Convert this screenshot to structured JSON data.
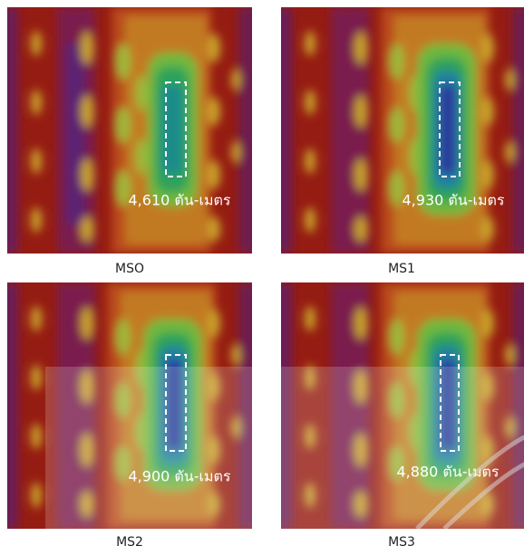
{
  "panels": [
    {
      "annotation": "4,610 ตัน-เมตร",
      "caption": "MSO"
    },
    {
      "annotation": "4,930 ตัน-เมตร",
      "caption": "MS1"
    },
    {
      "annotation": "4,900 ตัน-เมตร",
      "caption": "MS2"
    },
    {
      "annotation": "4,880 ตัน-เมตร",
      "caption": "MS3"
    }
  ]
}
